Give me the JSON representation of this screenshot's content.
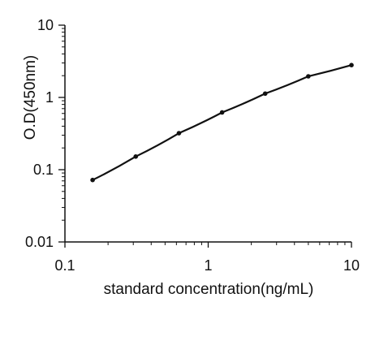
{
  "chart_data": {
    "type": "line",
    "title": "",
    "xlabel": "standard concentration(ng/mL)",
    "ylabel": "O.D(450nm)",
    "x_scale": "log",
    "y_scale": "log",
    "xlim": [
      0.1,
      10
    ],
    "ylim": [
      0.01,
      10
    ],
    "x_ticks": [
      {
        "value": 0.1,
        "label": "0.1"
      },
      {
        "value": 1,
        "label": "1"
      },
      {
        "value": 10,
        "label": "10"
      }
    ],
    "y_ticks": [
      {
        "value": 0.01,
        "label": "0.01"
      },
      {
        "value": 0.1,
        "label": "0.1"
      },
      {
        "value": 1,
        "label": "1"
      },
      {
        "value": 10,
        "label": "10"
      }
    ],
    "grid": false,
    "series": [
      {
        "x": [
          0.156,
          0.312,
          0.625,
          1.25,
          2.5,
          5,
          10
        ],
        "y": [
          0.072,
          0.152,
          0.32,
          0.62,
          1.13,
          1.96,
          2.8
        ]
      }
    ],
    "colors": {
      "line": "#111111",
      "marker": "#111111",
      "axis": "#111111"
    }
  }
}
